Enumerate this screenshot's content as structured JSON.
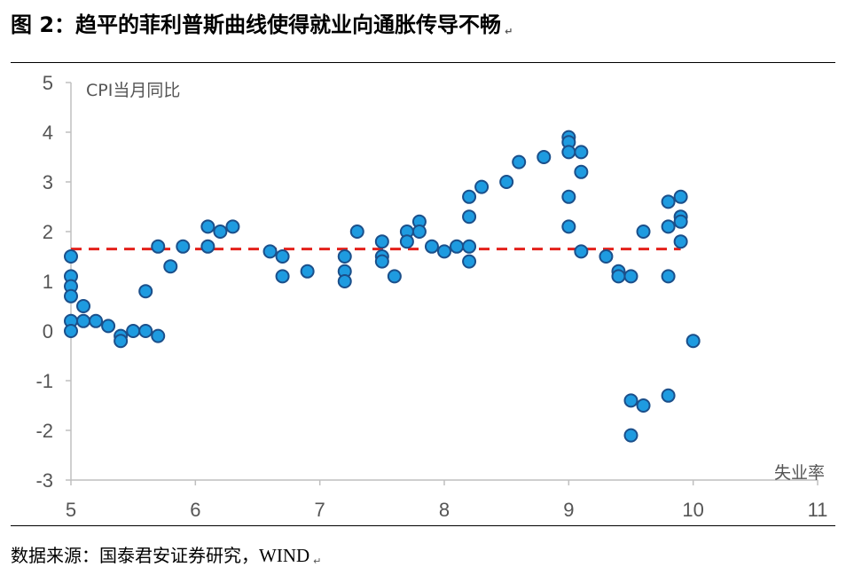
{
  "figure": {
    "title": "图 2：趋平的菲利普斯曲线使得就业向通胀传导不畅",
    "source_label": "数据来源：国泰君安证券研究，",
    "source_wind": "WIND",
    "return_mark": "↵"
  },
  "chart_data": {
    "type": "scatter",
    "title": "",
    "xlabel": "失业率",
    "ylabel": "CPI当月同比",
    "xlim": [
      5,
      11
    ],
    "ylim": [
      -3,
      5
    ],
    "xticks": [
      5,
      6,
      7,
      8,
      9,
      10,
      11
    ],
    "yticks": [
      -3,
      -2,
      -1,
      0,
      1,
      2,
      3,
      4,
      5
    ],
    "grid": false,
    "marker_color": "#1E9BE0",
    "marker_edge_color": "#1B4F8A",
    "reference_line": {
      "y": 1.65,
      "x_range": [
        5.0,
        9.9
      ],
      "style": "dashed",
      "color": "#E3201A"
    },
    "points": [
      [
        5.0,
        1.5
      ],
      [
        5.0,
        1.1
      ],
      [
        5.0,
        0.9
      ],
      [
        5.0,
        0.7
      ],
      [
        5.0,
        0.2
      ],
      [
        5.0,
        0.0
      ],
      [
        5.1,
        0.5
      ],
      [
        5.1,
        0.2
      ],
      [
        5.2,
        0.2
      ],
      [
        5.3,
        0.1
      ],
      [
        5.4,
        -0.1
      ],
      [
        5.4,
        -0.2
      ],
      [
        5.5,
        0.0
      ],
      [
        5.6,
        0.0
      ],
      [
        5.6,
        0.8
      ],
      [
        5.7,
        -0.1
      ],
      [
        5.7,
        1.7
      ],
      [
        5.8,
        1.3
      ],
      [
        5.9,
        1.7
      ],
      [
        6.1,
        2.1
      ],
      [
        6.1,
        1.7
      ],
      [
        6.2,
        2.0
      ],
      [
        6.3,
        2.1
      ],
      [
        6.6,
        1.6
      ],
      [
        6.7,
        1.5
      ],
      [
        6.7,
        1.1
      ],
      [
        6.9,
        1.2
      ],
      [
        7.2,
        1.5
      ],
      [
        7.2,
        1.2
      ],
      [
        7.2,
        1.0
      ],
      [
        7.3,
        2.0
      ],
      [
        7.5,
        1.8
      ],
      [
        7.5,
        1.5
      ],
      [
        7.5,
        1.4
      ],
      [
        7.6,
        1.1
      ],
      [
        7.7,
        2.0
      ],
      [
        7.7,
        1.8
      ],
      [
        7.8,
        2.2
      ],
      [
        7.8,
        2.0
      ],
      [
        7.9,
        1.7
      ],
      [
        8.0,
        1.6
      ],
      [
        8.1,
        1.7
      ],
      [
        8.2,
        2.7
      ],
      [
        8.2,
        2.3
      ],
      [
        8.2,
        1.7
      ],
      [
        8.2,
        1.4
      ],
      [
        8.3,
        2.9
      ],
      [
        8.5,
        3.0
      ],
      [
        8.6,
        3.4
      ],
      [
        8.8,
        3.5
      ],
      [
        9.0,
        3.9
      ],
      [
        9.0,
        3.8
      ],
      [
        9.0,
        3.6
      ],
      [
        9.0,
        2.7
      ],
      [
        9.0,
        2.1
      ],
      [
        9.1,
        3.6
      ],
      [
        9.1,
        3.2
      ],
      [
        9.1,
        1.6
      ],
      [
        9.3,
        1.5
      ],
      [
        9.4,
        1.2
      ],
      [
        9.4,
        1.1
      ],
      [
        9.5,
        1.1
      ],
      [
        9.5,
        -1.4
      ],
      [
        9.5,
        -2.1
      ],
      [
        9.6,
        2.0
      ],
      [
        9.6,
        -1.5
      ],
      [
        9.8,
        2.6
      ],
      [
        9.8,
        2.1
      ],
      [
        9.8,
        1.1
      ],
      [
        9.8,
        -1.3
      ],
      [
        9.9,
        2.7
      ],
      [
        9.9,
        2.3
      ],
      [
        9.9,
        2.2
      ],
      [
        9.9,
        1.8
      ],
      [
        10.0,
        -0.2
      ]
    ]
  }
}
